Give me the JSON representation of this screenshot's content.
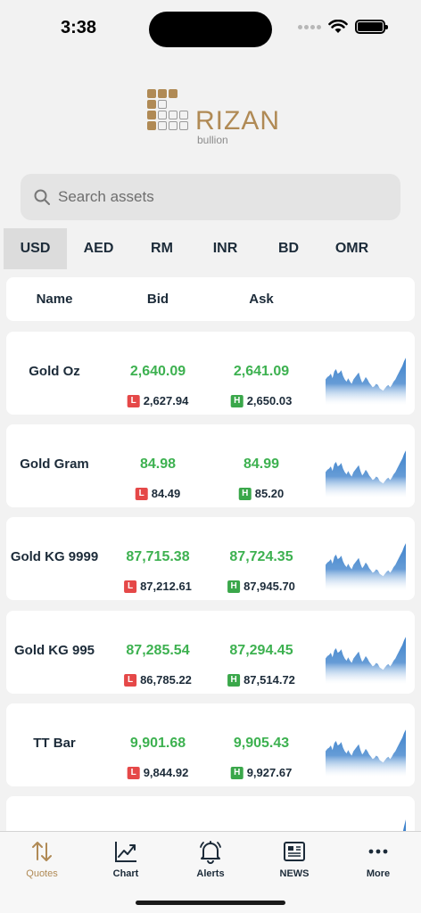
{
  "status": {
    "time": "3:38"
  },
  "logo": {
    "word": "RIZAN",
    "sub": "bullion"
  },
  "search": {
    "placeholder": "Search assets"
  },
  "currencies": [
    "USD",
    "AED",
    "RM",
    "INR",
    "BD",
    "OMR"
  ],
  "table_header": {
    "name": "Name",
    "bid": "Bid",
    "ask": "Ask"
  },
  "rows": [
    {
      "name": "Gold Oz",
      "bid": "2,640.09",
      "ask": "2,641.09",
      "low": "2,627.94",
      "high": "2,650.03"
    },
    {
      "name": "Gold Gram",
      "bid": "84.98",
      "ask": "84.99",
      "low": "84.49",
      "high": "85.20"
    },
    {
      "name": "Gold KG 9999",
      "bid": "87,715.38",
      "ask": "87,724.35",
      "low": "87,212.61",
      "high": "87,945.70"
    },
    {
      "name": "Gold KG 995",
      "bid": "87,285.54",
      "ask": "87,294.45",
      "low": "86,785.22",
      "high": "87,514.72"
    },
    {
      "name": "TT Bar",
      "bid": "9,901.68",
      "ask": "9,905.43",
      "low": "9,844.92",
      "high": "9,927.67"
    }
  ],
  "badges": {
    "low": "L",
    "high": "H"
  },
  "tabs": [
    {
      "label": "Quotes",
      "icon": "arrows-up-down-icon"
    },
    {
      "label": "Chart",
      "icon": "chart-line-icon"
    },
    {
      "label": "Alerts",
      "icon": "bell-icon"
    },
    {
      "label": "NEWS",
      "icon": "newspaper-icon"
    },
    {
      "label": "More",
      "icon": "more-dots-icon"
    }
  ],
  "colors": {
    "accent": "#b08a55",
    "price": "#3db150",
    "low": "#e54848",
    "high": "#3aa74a",
    "spark": "#3f83cc"
  }
}
